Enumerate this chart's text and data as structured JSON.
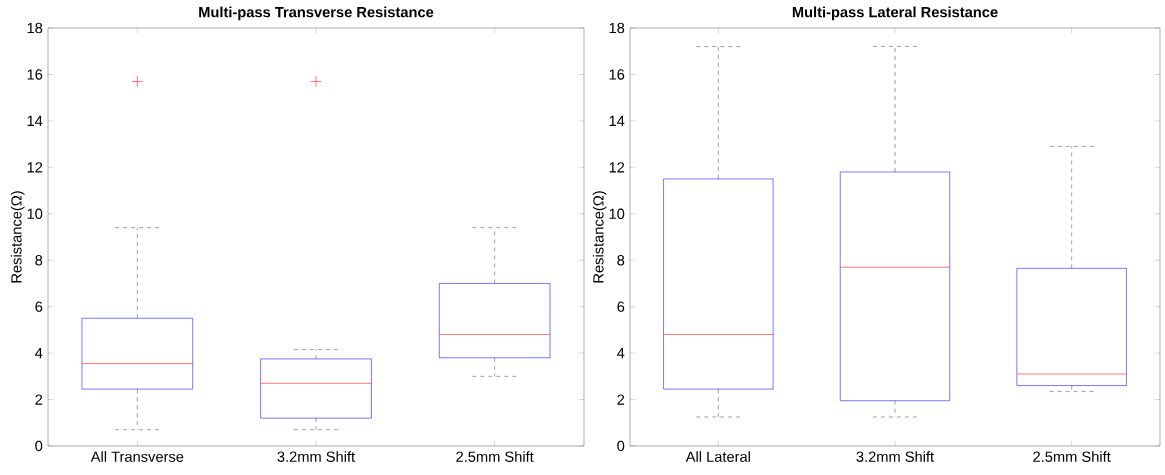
{
  "chart_data": [
    {
      "type": "box",
      "title": "Multi-pass Transverse Resistance",
      "ylabel": "Resistance(Ω)",
      "categories": [
        "All Transverse",
        "3.2mm Shift",
        "2.5mm Shift"
      ],
      "boxes": [
        {
          "low": 0.7,
          "q1": 2.45,
          "median": 3.55,
          "q3": 5.5,
          "high": 9.4,
          "outliers": [
            15.7
          ]
        },
        {
          "low": 0.7,
          "q1": 1.2,
          "median": 2.7,
          "q3": 3.75,
          "high": 4.15,
          "outliers": [
            15.7
          ]
        },
        {
          "low": 3.0,
          "q1": 3.8,
          "median": 4.8,
          "q3": 7.0,
          "high": 9.4
        }
      ],
      "ylim": [
        0,
        18
      ],
      "yticks": [
        0,
        2,
        4,
        6,
        8,
        10,
        12,
        14,
        16,
        18
      ],
      "grid": false
    },
    {
      "type": "box",
      "title": "Multi-pass Lateral Resistance",
      "ylabel": "Resistance(Ω)",
      "categories": [
        "All Lateral",
        "3.2mm Shift",
        "2.5mm Shift"
      ],
      "boxes": [
        {
          "low": 1.25,
          "q1": 2.45,
          "median": 4.8,
          "q3": 11.5,
          "high": 17.2
        },
        {
          "low": 1.25,
          "q1": 1.95,
          "median": 7.7,
          "q3": 11.8,
          "high": 17.2
        },
        {
          "low": 2.35,
          "q1": 2.6,
          "median": 3.1,
          "q3": 7.65,
          "high": 12.9
        }
      ],
      "ylim": [
        0,
        18
      ],
      "yticks": [
        0,
        2,
        4,
        6,
        8,
        10,
        12,
        14,
        16,
        18
      ],
      "grid": false
    }
  ]
}
